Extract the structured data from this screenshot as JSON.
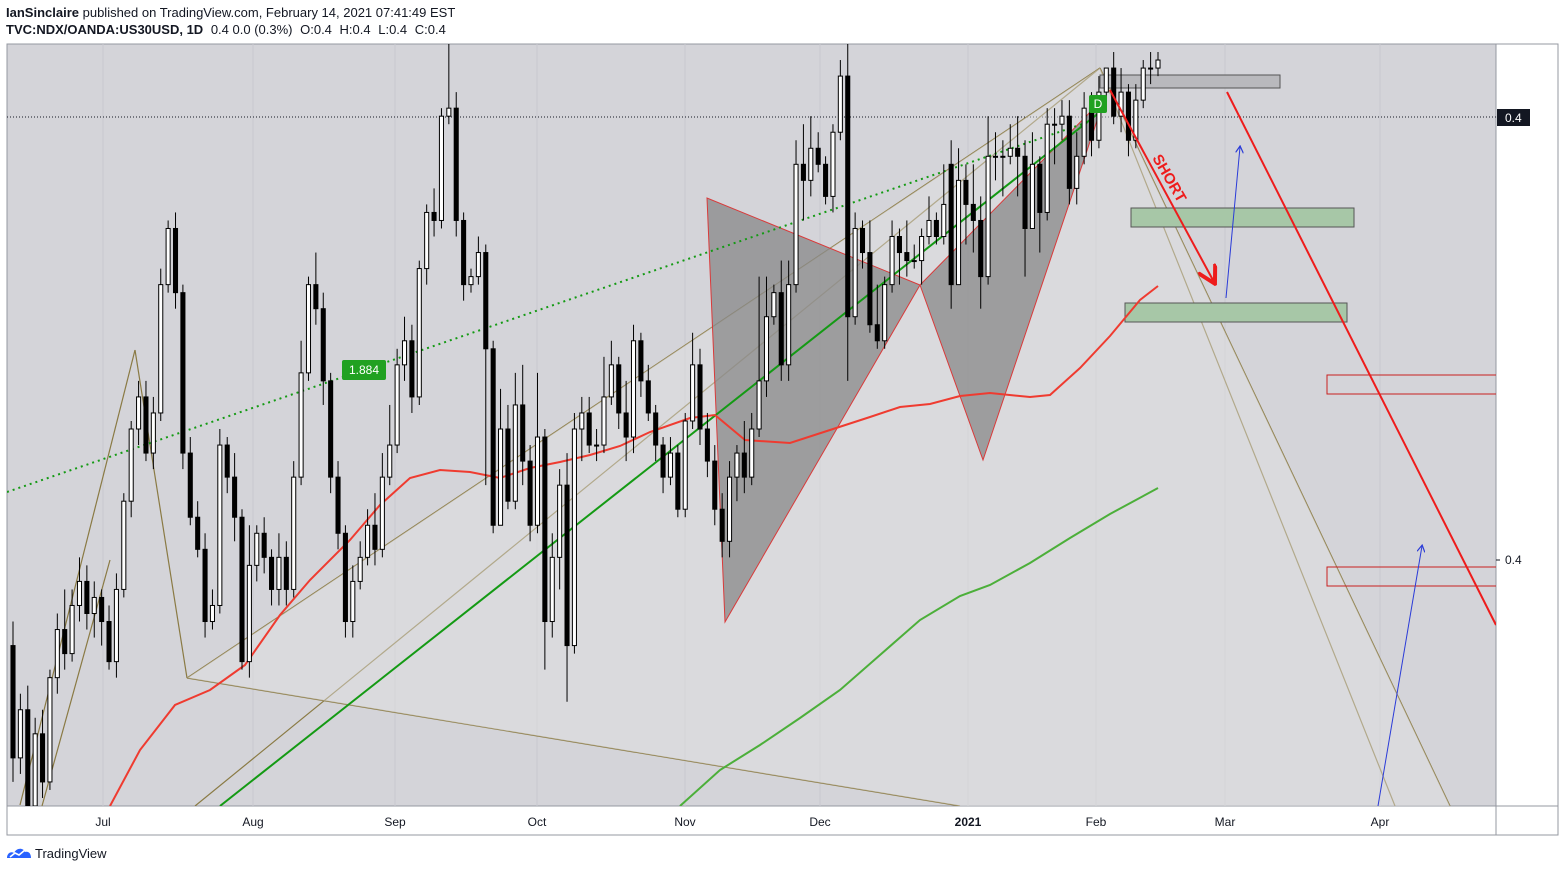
{
  "header": {
    "author": "IanSinclaire",
    "published_text": "published on TradingView.com, February 14, 2021 07:41:49 EST",
    "symbol": "TVC:NDX/OANDA:US30USD, 1D",
    "change": "0.4  0.0 (0.3%)",
    "ohlc": {
      "open": "O:0.4",
      "high": "H:0.4",
      "low": "L:0.4",
      "close": "C:0.4"
    }
  },
  "footer": {
    "brand": "TradingView"
  },
  "colors": {
    "bull": "#ffffff",
    "bear": "#000000",
    "ma_fast": "#ef3b30",
    "ma_slow": "#4caf3a",
    "trend": "#149a14",
    "fib": "#8a7a44",
    "pattern_fill": "#888888",
    "pattern_edge": "#d93a3a",
    "short": "#ee1c1c",
    "target": "#2a3bd8",
    "zone_green": "#a7c7a7",
    "zone_red_edge": "#c82020",
    "zone_gray": "#b9b9bd",
    "plot_bg": "#d4d4d9"
  },
  "chart_data": {
    "type": "candlestick",
    "title": "",
    "x_ticks": [
      "Jul",
      "Aug",
      "Sep",
      "Oct",
      "Nov",
      "Dec",
      "2021",
      "Feb",
      "Mar",
      "Apr"
    ],
    "y_ticks": [
      "0.4"
    ],
    "price_label": "0.4",
    "pattern_labels": {
      "ratio": "1.884",
      "point": "D"
    },
    "annotation": "SHORT",
    "candles": [
      [
        0.365,
        0.351,
        0.368,
        0.348
      ],
      [
        0.351,
        0.357,
        0.359,
        0.349
      ],
      [
        0.357,
        0.345,
        0.36,
        0.343
      ],
      [
        0.345,
        0.354,
        0.356,
        0.343
      ],
      [
        0.354,
        0.348,
        0.357,
        0.346
      ],
      [
        0.348,
        0.361,
        0.362,
        0.347
      ],
      [
        0.361,
        0.367,
        0.369,
        0.359
      ],
      [
        0.367,
        0.364,
        0.372,
        0.362
      ],
      [
        0.364,
        0.37,
        0.372,
        0.363
      ],
      [
        0.37,
        0.373,
        0.376,
        0.368
      ],
      [
        0.373,
        0.369,
        0.375,
        0.367
      ],
      [
        0.369,
        0.371,
        0.373,
        0.366
      ],
      [
        0.371,
        0.368,
        0.372,
        0.365
      ],
      [
        0.368,
        0.363,
        0.37,
        0.362
      ],
      [
        0.363,
        0.372,
        0.374,
        0.361
      ],
      [
        0.372,
        0.383,
        0.384,
        0.371
      ],
      [
        0.383,
        0.392,
        0.393,
        0.381
      ],
      [
        0.392,
        0.396,
        0.398,
        0.39
      ],
      [
        0.396,
        0.389,
        0.398,
        0.388
      ],
      [
        0.389,
        0.394,
        0.396,
        0.387
      ],
      [
        0.394,
        0.41,
        0.412,
        0.393
      ],
      [
        0.41,
        0.417,
        0.418,
        0.409
      ],
      [
        0.417,
        0.409,
        0.419,
        0.407
      ],
      [
        0.409,
        0.389,
        0.41,
        0.387
      ],
      [
        0.389,
        0.381,
        0.391,
        0.38
      ],
      [
        0.381,
        0.377,
        0.383,
        0.376
      ],
      [
        0.377,
        0.368,
        0.379,
        0.366
      ],
      [
        0.368,
        0.37,
        0.372,
        0.367
      ],
      [
        0.37,
        0.39,
        0.392,
        0.369
      ],
      [
        0.39,
        0.386,
        0.391,
        0.384
      ],
      [
        0.386,
        0.381,
        0.389,
        0.378
      ],
      [
        0.381,
        0.363,
        0.382,
        0.362
      ],
      [
        0.363,
        0.375,
        0.38,
        0.361
      ],
      [
        0.375,
        0.379,
        0.38,
        0.373
      ],
      [
        0.379,
        0.376,
        0.381,
        0.374
      ],
      [
        0.376,
        0.372,
        0.377,
        0.37
      ],
      [
        0.372,
        0.376,
        0.379,
        0.37
      ],
      [
        0.376,
        0.372,
        0.378,
        0.37
      ],
      [
        0.372,
        0.386,
        0.388,
        0.371
      ],
      [
        0.386,
        0.399,
        0.403,
        0.385
      ],
      [
        0.399,
        0.41,
        0.411,
        0.398
      ],
      [
        0.41,
        0.407,
        0.414,
        0.405
      ],
      [
        0.407,
        0.398,
        0.409,
        0.395
      ],
      [
        0.398,
        0.386,
        0.399,
        0.384
      ],
      [
        0.386,
        0.379,
        0.388,
        0.377
      ],
      [
        0.379,
        0.368,
        0.38,
        0.366
      ],
      [
        0.368,
        0.373,
        0.375,
        0.366
      ],
      [
        0.373,
        0.376,
        0.378,
        0.372
      ],
      [
        0.376,
        0.38,
        0.382,
        0.375
      ],
      [
        0.38,
        0.377,
        0.384,
        0.375
      ],
      [
        0.377,
        0.386,
        0.389,
        0.376
      ],
      [
        0.386,
        0.39,
        0.395,
        0.385
      ],
      [
        0.39,
        0.4,
        0.402,
        0.389
      ],
      [
        0.4,
        0.403,
        0.406,
        0.398
      ],
      [
        0.403,
        0.396,
        0.405,
        0.394
      ],
      [
        0.396,
        0.412,
        0.413,
        0.395
      ],
      [
        0.412,
        0.419,
        0.42,
        0.41
      ],
      [
        0.419,
        0.418,
        0.422,
        0.416
      ],
      [
        0.418,
        0.431,
        0.432,
        0.417
      ],
      [
        0.431,
        0.432,
        0.442,
        0.43
      ],
      [
        0.432,
        0.418,
        0.434,
        0.416
      ],
      [
        0.418,
        0.41,
        0.419,
        0.408
      ],
      [
        0.41,
        0.411,
        0.412,
        0.409
      ],
      [
        0.411,
        0.414,
        0.416,
        0.41
      ],
      [
        0.414,
        0.402,
        0.415,
        0.385
      ],
      [
        0.402,
        0.38,
        0.403,
        0.379
      ],
      [
        0.38,
        0.392,
        0.397,
        0.38
      ],
      [
        0.392,
        0.383,
        0.395,
        0.382
      ],
      [
        0.383,
        0.395,
        0.399,
        0.382
      ],
      [
        0.395,
        0.388,
        0.4,
        0.385
      ],
      [
        0.388,
        0.38,
        0.39,
        0.378
      ],
      [
        0.38,
        0.391,
        0.399,
        0.379
      ],
      [
        0.391,
        0.368,
        0.392,
        0.362
      ],
      [
        0.368,
        0.376,
        0.379,
        0.366
      ],
      [
        0.376,
        0.385,
        0.387,
        0.372
      ],
      [
        0.385,
        0.365,
        0.389,
        0.358
      ],
      [
        0.365,
        0.392,
        0.394,
        0.364
      ],
      [
        0.392,
        0.394,
        0.396,
        0.388
      ],
      [
        0.394,
        0.39,
        0.396,
        0.389
      ],
      [
        0.39,
        0.39,
        0.392,
        0.388
      ],
      [
        0.39,
        0.396,
        0.401,
        0.389
      ],
      [
        0.396,
        0.4,
        0.403,
        0.395
      ],
      [
        0.4,
        0.394,
        0.401,
        0.392
      ],
      [
        0.394,
        0.391,
        0.398,
        0.388
      ],
      [
        0.391,
        0.403,
        0.405,
        0.389
      ],
      [
        0.403,
        0.398,
        0.404,
        0.396
      ],
      [
        0.398,
        0.394,
        0.4,
        0.393
      ],
      [
        0.394,
        0.39,
        0.395,
        0.388
      ],
      [
        0.39,
        0.386,
        0.391,
        0.384
      ],
      [
        0.386,
        0.389,
        0.391,
        0.385
      ],
      [
        0.389,
        0.382,
        0.39,
        0.381
      ],
      [
        0.382,
        0.393,
        0.394,
        0.381
      ],
      [
        0.393,
        0.4,
        0.404,
        0.392
      ],
      [
        0.4,
        0.392,
        0.402,
        0.39
      ],
      [
        0.392,
        0.388,
        0.394,
        0.386
      ],
      [
        0.388,
        0.382,
        0.39,
        0.38
      ],
      [
        0.382,
        0.378,
        0.384,
        0.376
      ],
      [
        0.378,
        0.386,
        0.388,
        0.376
      ],
      [
        0.386,
        0.389,
        0.39,
        0.383
      ],
      [
        0.389,
        0.386,
        0.393,
        0.384
      ],
      [
        0.386,
        0.392,
        0.394,
        0.385
      ],
      [
        0.392,
        0.398,
        0.411,
        0.391
      ],
      [
        0.398,
        0.406,
        0.411,
        0.396
      ],
      [
        0.406,
        0.409,
        0.41,
        0.405
      ],
      [
        0.409,
        0.4,
        0.413,
        0.398
      ],
      [
        0.4,
        0.41,
        0.413,
        0.398
      ],
      [
        0.41,
        0.425,
        0.428,
        0.409
      ],
      [
        0.425,
        0.423,
        0.43,
        0.418
      ],
      [
        0.423,
        0.427,
        0.431,
        0.421
      ],
      [
        0.427,
        0.425,
        0.429,
        0.424
      ],
      [
        0.425,
        0.421,
        0.426,
        0.42
      ],
      [
        0.421,
        0.429,
        0.43,
        0.419
      ],
      [
        0.429,
        0.436,
        0.438,
        0.428
      ],
      [
        0.436,
        0.406,
        0.44,
        0.398
      ],
      [
        0.406,
        0.417,
        0.419,
        0.405
      ],
      [
        0.417,
        0.414,
        0.418,
        0.412
      ],
      [
        0.414,
        0.405,
        0.418,
        0.404
      ],
      [
        0.405,
        0.403,
        0.41,
        0.402
      ],
      [
        0.403,
        0.41,
        0.411,
        0.402
      ],
      [
        0.41,
        0.416,
        0.418,
        0.409
      ],
      [
        0.416,
        0.414,
        0.417,
        0.41
      ],
      [
        0.414,
        0.413,
        0.418,
        0.411
      ],
      [
        0.413,
        0.413,
        0.415,
        0.412
      ],
      [
        0.413,
        0.416,
        0.417,
        0.41
      ],
      [
        0.416,
        0.418,
        0.421,
        0.415
      ],
      [
        0.418,
        0.416,
        0.419,
        0.415
      ],
      [
        0.416,
        0.42,
        0.425,
        0.415
      ],
      [
        0.425,
        0.41,
        0.428,
        0.407
      ],
      [
        0.41,
        0.423,
        0.427,
        0.41
      ],
      [
        0.423,
        0.42,
        0.425,
        0.415
      ],
      [
        0.42,
        0.418,
        0.425,
        0.414
      ],
      [
        0.418,
        0.411,
        0.421,
        0.407
      ],
      [
        0.411,
        0.426,
        0.431,
        0.41
      ],
      [
        0.426,
        0.426,
        0.429,
        0.423
      ],
      [
        0.426,
        0.426,
        0.428,
        0.421
      ],
      [
        0.426,
        0.427,
        0.43,
        0.425
      ],
      [
        0.427,
        0.426,
        0.431,
        0.421
      ],
      [
        0.426,
        0.417,
        0.428,
        0.411
      ],
      [
        0.417,
        0.425,
        0.429,
        0.417
      ],
      [
        0.425,
        0.419,
        0.426,
        0.414
      ],
      [
        0.419,
        0.43,
        0.432,
        0.418
      ],
      [
        0.43,
        0.43,
        0.432,
        0.425
      ],
      [
        0.43,
        0.431,
        0.433,
        0.428
      ],
      [
        0.431,
        0.422,
        0.433,
        0.42
      ],
      [
        0.422,
        0.426,
        0.429,
        0.42
      ],
      [
        0.426,
        0.432,
        0.434,
        0.425
      ],
      [
        0.432,
        0.428,
        0.434,
        0.426
      ],
      [
        0.428,
        0.434,
        0.436,
        0.427
      ],
      [
        0.434,
        0.437,
        0.437,
        0.432
      ],
      [
        0.437,
        0.431,
        0.439,
        0.43
      ],
      [
        0.431,
        0.434,
        0.437,
        0.429
      ],
      [
        0.434,
        0.428,
        0.435,
        0.426
      ],
      [
        0.428,
        0.433,
        0.435,
        0.427
      ],
      [
        0.433,
        0.437,
        0.438,
        0.432
      ],
      [
        0.437,
        0.437,
        0.439,
        0.435
      ],
      [
        0.437,
        0.438,
        0.439,
        0.436
      ]
    ],
    "ma_fast": [
      [
        0,
        0.308
      ],
      [
        0.02,
        0.31
      ],
      [
        0.04,
        0.316
      ],
      [
        0.06,
        0.325
      ],
      [
        0.08,
        0.335
      ],
      [
        0.1,
        0.345
      ],
      [
        0.12,
        0.35
      ],
      [
        0.14,
        0.356
      ],
      [
        0.16,
        0.364
      ],
      [
        0.18,
        0.372
      ],
      [
        0.2,
        0.378
      ],
      [
        0.22,
        0.381
      ],
      [
        0.24,
        0.385
      ],
      [
        0.26,
        0.388
      ],
      [
        0.28,
        0.385
      ],
      [
        0.3,
        0.384
      ],
      [
        0.32,
        0.383
      ],
      [
        0.34,
        0.382
      ],
      [
        0.36,
        0.384
      ],
      [
        0.38,
        0.385
      ],
      [
        0.4,
        0.386
      ],
      [
        0.42,
        0.389
      ],
      [
        0.44,
        0.397
      ],
      [
        0.46,
        0.398
      ],
      [
        0.48,
        0.397
      ],
      [
        0.5,
        0.393
      ],
      [
        0.52,
        0.391
      ],
      [
        0.54,
        0.391
      ],
      [
        0.56,
        0.393
      ],
      [
        0.58,
        0.393
      ],
      [
        0.6,
        0.394
      ],
      [
        0.62,
        0.394
      ],
      [
        0.64,
        0.397
      ],
      [
        0.66,
        0.396
      ],
      [
        0.68,
        0.395
      ],
      [
        0.7,
        0.395
      ],
      [
        0.72,
        0.396
      ],
      [
        0.74,
        0.398
      ],
      [
        0.76,
        0.405
      ],
      [
        0.78,
        0.41
      ],
      [
        0.8,
        0.416
      ],
      [
        0.82,
        0.42
      ]
    ],
    "ma_slow": [
      [
        0.48,
        0.328
      ],
      [
        0.52,
        0.336
      ],
      [
        0.56,
        0.344
      ],
      [
        0.6,
        0.352
      ],
      [
        0.64,
        0.362
      ],
      [
        0.68,
        0.368
      ],
      [
        0.72,
        0.372
      ],
      [
        0.76,
        0.378
      ],
      [
        0.8,
        0.382
      ],
      [
        0.82,
        0.384
      ]
    ],
    "trend_line": [
      [
        0.14,
        0.328
      ],
      [
        0.8,
        0.43
      ]
    ],
    "dotted_trend": [
      [
        0,
        0.384
      ],
      [
        0.8,
        0.43
      ]
    ],
    "short_arrow": [
      [
        0.8,
        0.433
      ],
      [
        0.88,
        0.414
      ]
    ],
    "down_line": [
      [
        0.88,
        0.435
      ],
      [
        1,
        0.37
      ]
    ]
  }
}
